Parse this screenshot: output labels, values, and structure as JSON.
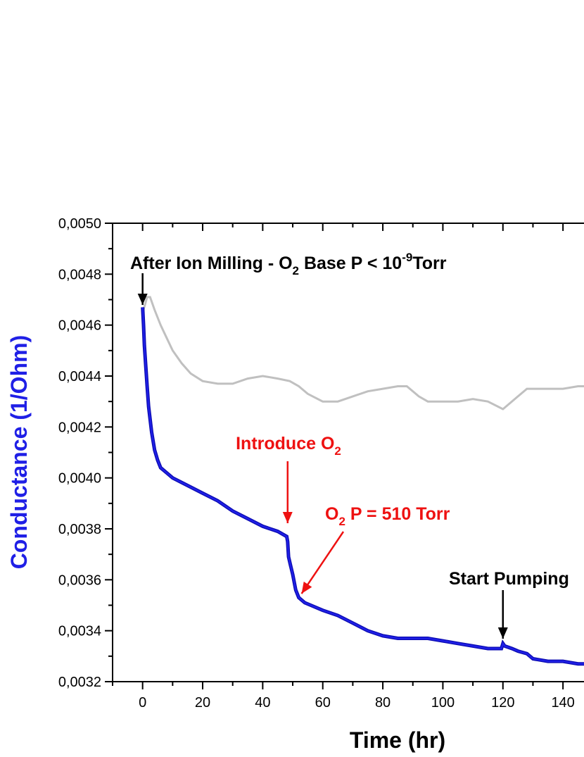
{
  "chart_data": {
    "type": "line",
    "xlabel": "Time (hr)",
    "ylabel": "Conductance (1/Ohm)",
    "xlim": [
      -10,
      147
    ],
    "ylim": [
      0.0032,
      0.005
    ],
    "x_ticks": [
      "0",
      "20",
      "40",
      "60",
      "80",
      "100",
      "120",
      "140"
    ],
    "y_ticks": [
      "0,0032",
      "0,0034",
      "0,0036",
      "0,0038",
      "0,0040",
      "0,0042",
      "0,0044",
      "0,0046",
      "0,0048",
      "0,0050"
    ],
    "grid": false,
    "colors": {
      "blue_series": "#1f1fe6",
      "gray_series": "#c0c0c0",
      "red_annotation": "#ee1111",
      "black_annotation": "#000000"
    },
    "series": [
      {
        "values": [
          [
            0,
            0.00467
          ],
          [
            0.3,
            0.0046
          ],
          [
            0.6,
            0.00452
          ],
          [
            1,
            0.00445
          ],
          [
            1.5,
            0.00436
          ],
          [
            2,
            0.00428
          ],
          [
            3,
            0.00418
          ],
          [
            4,
            0.00411
          ],
          [
            5,
            0.00407
          ],
          [
            6,
            0.00404
          ],
          [
            8,
            0.00402
          ],
          [
            10,
            0.004
          ],
          [
            15,
            0.00397
          ],
          [
            20,
            0.00394
          ],
          [
            25,
            0.00391
          ],
          [
            30,
            0.00387
          ],
          [
            35,
            0.00384
          ],
          [
            40,
            0.00381
          ],
          [
            45,
            0.00379
          ],
          [
            48,
            0.00377
          ],
          [
            48.3,
            0.00375
          ],
          [
            48.6,
            0.00369
          ],
          [
            49.2,
            0.00366
          ],
          [
            50,
            0.00362
          ],
          [
            51,
            0.00356
          ],
          [
            52,
            0.00353
          ],
          [
            54,
            0.00351
          ],
          [
            56,
            0.0035
          ],
          [
            60,
            0.00348
          ],
          [
            65,
            0.00346
          ],
          [
            70,
            0.00343
          ],
          [
            75,
            0.0034
          ],
          [
            80,
            0.00338
          ],
          [
            85,
            0.00337
          ],
          [
            90,
            0.00337
          ],
          [
            95,
            0.00337
          ],
          [
            100,
            0.00336
          ],
          [
            105,
            0.00335
          ],
          [
            110,
            0.00334
          ],
          [
            115,
            0.00333
          ],
          [
            119.5,
            0.00333
          ],
          [
            120,
            0.00335
          ],
          [
            120.6,
            0.00334
          ],
          [
            123,
            0.00333
          ],
          [
            125,
            0.00332
          ],
          [
            128,
            0.00331
          ],
          [
            130,
            0.00329
          ],
          [
            135,
            0.00328
          ],
          [
            140,
            0.00328
          ],
          [
            145,
            0.00327
          ],
          [
            147,
            0.00327
          ]
        ]
      },
      {
        "values": [
          [
            0,
            0.00465
          ],
          [
            0.8,
            0.00468
          ],
          [
            1.5,
            0.00471
          ],
          [
            2.5,
            0.00471
          ],
          [
            4,
            0.00466
          ],
          [
            6,
            0.0046
          ],
          [
            8,
            0.00455
          ],
          [
            10,
            0.0045
          ],
          [
            13,
            0.00445
          ],
          [
            16,
            0.00441
          ],
          [
            20,
            0.00438
          ],
          [
            25,
            0.00437
          ],
          [
            30,
            0.00437
          ],
          [
            35,
            0.00439
          ],
          [
            40,
            0.0044
          ],
          [
            45,
            0.00439
          ],
          [
            49,
            0.00438
          ],
          [
            52,
            0.00436
          ],
          [
            55,
            0.00433
          ],
          [
            60,
            0.0043
          ],
          [
            65,
            0.0043
          ],
          [
            70,
            0.00432
          ],
          [
            75,
            0.00434
          ],
          [
            80,
            0.00435
          ],
          [
            85,
            0.00436
          ],
          [
            88,
            0.00436
          ],
          [
            92,
            0.00432
          ],
          [
            95,
            0.0043
          ],
          [
            100,
            0.0043
          ],
          [
            105,
            0.0043
          ],
          [
            110,
            0.00431
          ],
          [
            115,
            0.0043
          ],
          [
            120,
            0.00427
          ],
          [
            125,
            0.00432
          ],
          [
            128,
            0.00435
          ],
          [
            135,
            0.00435
          ],
          [
            140,
            0.00435
          ],
          [
            145,
            0.00436
          ],
          [
            147,
            0.00436
          ]
        ]
      }
    ],
    "annotations": [
      {
        "text": "After Ion Milling - O",
        "sub": "2",
        "text2": " Base P < 10",
        "sup": "-9",
        "text3": "Torr",
        "color": "#000000",
        "arrow_to": [
          0,
          0.00467
        ]
      },
      {
        "text": "Introduce O",
        "sub": "2",
        "color": "#ee1111",
        "arrow_to": [
          48.3,
          0.00378
        ]
      },
      {
        "text": "O",
        "sub": "2",
        "text2": " P = 510 Torr",
        "color": "#ee1111",
        "arrow_to": [
          52,
          0.00354
        ]
      },
      {
        "text": "Start Pumping",
        "color": "#000000",
        "arrow_to": [
          120,
          0.00336
        ]
      }
    ]
  }
}
